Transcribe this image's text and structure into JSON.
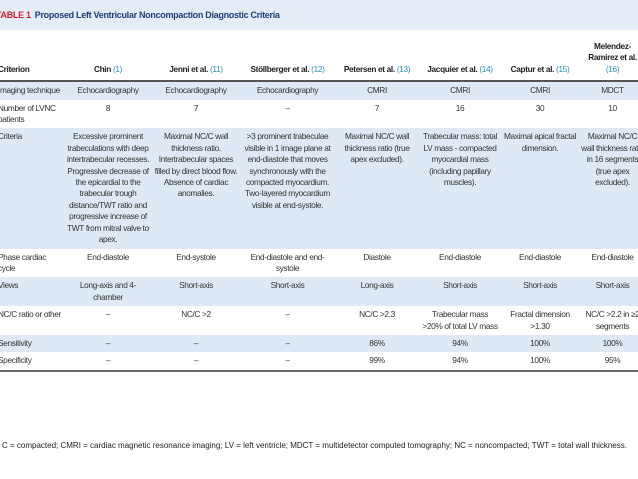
{
  "title": {
    "label": "TABLE 1",
    "text": "Proposed Left Ventricular Noncompaction Diagnostic Criteria"
  },
  "headers": [
    {
      "name": "Criterion",
      "ref": ""
    },
    {
      "name": "Chin",
      "ref": "(1)"
    },
    {
      "name": "Jenni et al.",
      "ref": "(11)"
    },
    {
      "name": "Stöllberger et al.",
      "ref": "(12)"
    },
    {
      "name": "Petersen et al.",
      "ref": "(13)"
    },
    {
      "name": "Jacquier et al.",
      "ref": "(14)"
    },
    {
      "name": "Captur et al.",
      "ref": "(15)"
    },
    {
      "name": "Melendez-Ramirez et al.",
      "ref": "(16)"
    }
  ],
  "rows": [
    {
      "cells": [
        "Imaging technique",
        "Echocardiography",
        "Echocardiography",
        "Echocardiography",
        "CMRI",
        "CMRI",
        "CMRI",
        "MDCT"
      ]
    },
    {
      "cells": [
        "Number of LVNC patients",
        "8",
        "7",
        "–",
        "7",
        "16",
        "30",
        "10"
      ]
    },
    {
      "cells": [
        "Criteria",
        "Excessive prominent trabeculations with deep intertrabecular recesses. Progressive decrease of the epicardial to the trabecular trough distance/TWT ratio and progressive increase of TWT from mitral valve to apex.",
        "Maximal NC/C wall thickness ratio. Intertrabecular spaces filled by direct blood flow. Absence of cardiac anomalies.",
        ">3 prominent trabeculae visible in 1 image plane at end-diastole that moves synchronously with the compacted myocardium. Two-layered myocardium visible at end-systole.",
        "Maximal NC/C wall thickness ratio (true apex excluded).",
        "Trabecular mass: total LV mass - compacted myocardial mass (including papillary muscles).",
        "Maximal apical fractal dimension.",
        "Maximal NC/C wall thickness ratio in 16 segments (true apex excluded)."
      ]
    },
    {
      "cells": [
        "Phase cardiac cycle",
        "End-diastole",
        "End-systole",
        "End-diastole and end-systole",
        "Diastole",
        "End-diastole",
        "End-diastole",
        "End-diastole"
      ]
    },
    {
      "cells": [
        "Views",
        "Long-axis and 4-chamber",
        "Short-axis",
        "Short-axis",
        "Long-axis",
        "Short-axis",
        "Short-axis",
        "Short-axis"
      ]
    },
    {
      "cells": [
        "NC/C ratio or other",
        "–",
        "NC/C >2",
        "–",
        "NC/C >2.3",
        "Trabecular mass >20% of total LV mass",
        "Fractal dimension >1.30",
        "NC/C >2.2 in ≥2 segments"
      ]
    },
    {
      "cells": [
        "Sensitivity",
        "–",
        "–",
        "–",
        "86%",
        "94%",
        "100%",
        "100%"
      ]
    },
    {
      "cells": [
        "Specificity",
        "–",
        "–",
        "–",
        "99%",
        "94%",
        "100%",
        "95%"
      ]
    }
  ],
  "footnote": "C = compacted; CMRI = cardiac magnetic resonance imaging; LV = left ventricle; MDCT = multidetector computed tomography; NC = noncompacted; TWT = total wall thickness.",
  "colors": {
    "label": "#d2232a",
    "title": "#1f3f7a",
    "ref": "#2a8fc0",
    "band": "#dfe9f6"
  }
}
